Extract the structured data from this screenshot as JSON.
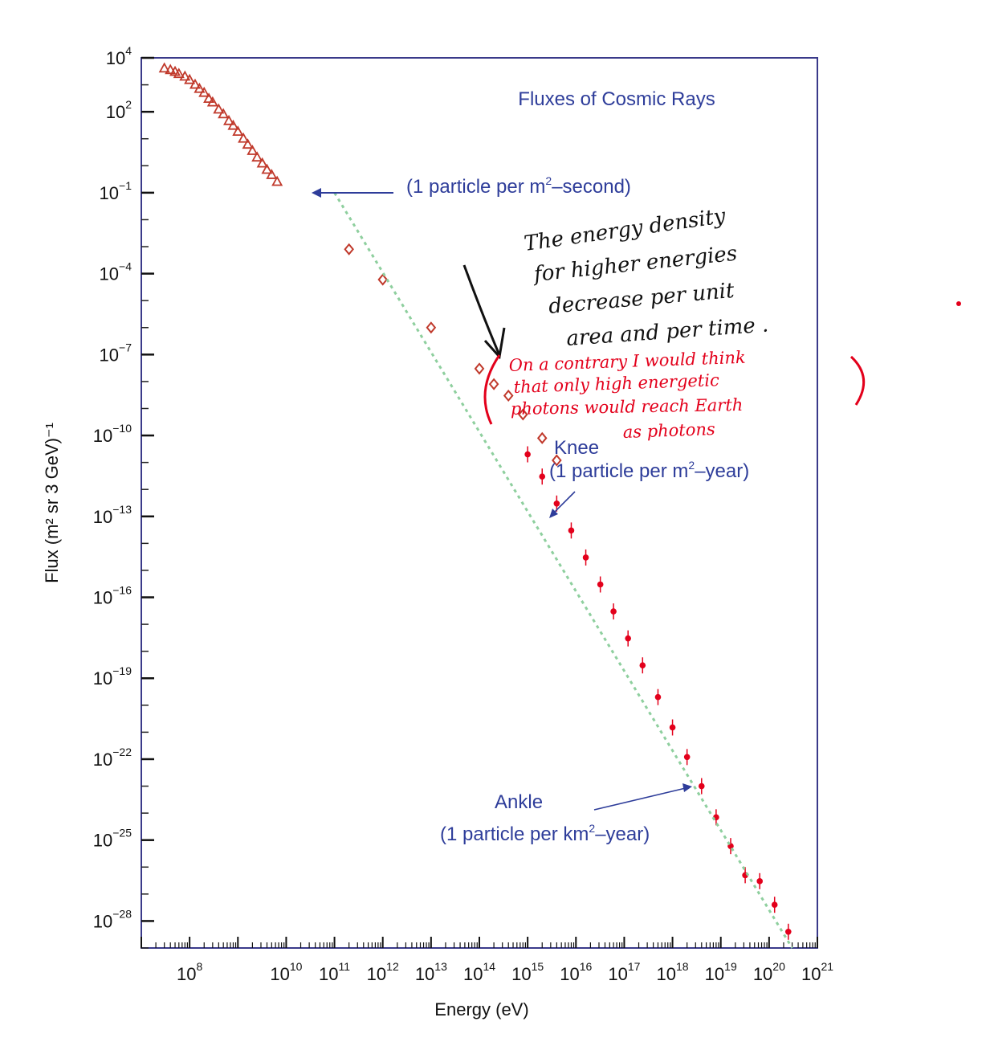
{
  "chart_data": {
    "type": "scatter",
    "title": "Fluxes of Cosmic Rays",
    "xlabel": "Energy (eV)",
    "ylabel": "Flux (m² sr 3 GeV)⁻¹",
    "x_scale": "log",
    "y_scale": "log",
    "xlim": [
      10000000.0,
      1e+21
    ],
    "ylim": [
      1e-29,
      10000.0
    ],
    "x_ticks": [
      {
        "exp": "8"
      },
      {
        "exp": "10"
      },
      {
        "exp": "11"
      },
      {
        "exp": "12"
      },
      {
        "exp": "13"
      },
      {
        "exp": "14"
      },
      {
        "exp": "15"
      },
      {
        "exp": "16"
      },
      {
        "exp": "17"
      },
      {
        "exp": "18"
      },
      {
        "exp": "19"
      },
      {
        "exp": "20"
      },
      {
        "exp": "21"
      }
    ],
    "y_ticks": [
      {
        "exp": "4"
      },
      {
        "exp": "2"
      },
      {
        "exp": "−1"
      },
      {
        "exp": "−4"
      },
      {
        "exp": "−7"
      },
      {
        "exp": "−10"
      },
      {
        "exp": "−13"
      },
      {
        "exp": "−16"
      },
      {
        "exp": "−19"
      },
      {
        "exp": "−22"
      },
      {
        "exp": "−25"
      },
      {
        "exp": "−28"
      }
    ],
    "tick_base": "10",
    "series": [
      {
        "marker": "open-triangle",
        "color": "#c0392b",
        "points": [
          [
            30000000.0,
            4000
          ],
          [
            40000000.0,
            3500
          ],
          [
            50000000.0,
            3000
          ],
          [
            60000000.0,
            2500
          ],
          [
            80000000.0,
            2000
          ],
          [
            100000000.0,
            1500
          ],
          [
            130000000.0,
            1000
          ],
          [
            160000000.0,
            700
          ],
          [
            200000000.0,
            500
          ],
          [
            250000000.0,
            300
          ],
          [
            300000000.0,
            220
          ],
          [
            400000000.0,
            120
          ],
          [
            500000000.0,
            80
          ],
          [
            650000000.0,
            45
          ],
          [
            800000000.0,
            30
          ],
          [
            1000000000.0,
            18
          ],
          [
            1300000000.0,
            10
          ],
          [
            1600000000.0,
            6
          ],
          [
            2000000000.0,
            3.5
          ],
          [
            2500000000.0,
            2
          ],
          [
            3200000000.0,
            1.2
          ],
          [
            4000000000.0,
            0.7
          ],
          [
            5000000000.0,
            0.45
          ],
          [
            6500000000.0,
            0.25
          ]
        ]
      },
      {
        "marker": "open-diamond",
        "color": "#c0392b",
        "points": [
          [
            200000000000.0,
            0.0008
          ],
          [
            1000000000000.0,
            6e-05
          ],
          [
            10000000000000.0,
            1e-06
          ],
          [
            100000000000000.0,
            3e-08
          ],
          [
            200000000000000.0,
            8e-09
          ],
          [
            400000000000000.0,
            3e-09
          ],
          [
            800000000000000.0,
            6e-10
          ],
          [
            2000000000000000.0,
            8e-11
          ],
          [
            4000000000000000.0,
            1.2e-11
          ]
        ]
      },
      {
        "marker": "filled-dot",
        "color": "#e3001b",
        "points": [
          [
            1000000000000000.0,
            2e-11
          ],
          [
            2000000000000000.0,
            3e-12
          ],
          [
            4000000000000000.0,
            3e-13
          ],
          [
            8000000000000000.0,
            3e-14
          ],
          [
            1.6e+16,
            3e-15
          ],
          [
            3.2e+16,
            3e-16
          ],
          [
            6e+16,
            3e-17
          ],
          [
            1.2e+17,
            3e-18
          ],
          [
            2.4e+17,
            3e-19
          ],
          [
            5e+17,
            2e-20
          ],
          [
            1e+18,
            1.5e-21
          ],
          [
            2e+18,
            1.2e-22
          ],
          [
            4e+18,
            1e-23
          ],
          [
            8e+18,
            7e-25
          ],
          [
            1.6e+19,
            6e-26
          ],
          [
            3.2e+19,
            5e-27
          ],
          [
            6.4e+19,
            3e-27
          ],
          [
            1.3e+20,
            4e-28
          ],
          [
            2.5e+20,
            4e-29
          ]
        ]
      },
      {
        "marker": "dashed-line",
        "color": "#8ecf9e",
        "points": [
          [
            100000000000.0,
            0.1
          ],
          [
            3e+20,
            1e-29
          ]
        ]
      }
    ],
    "annotations": {
      "second": {
        "text": "(1 particle per m",
        "sup": "2",
        "tail": "–second)",
        "x": 100000000000.0,
        "y": 0.1
      },
      "knee": {
        "label": "Knee",
        "text": "(1 particle per m",
        "sup": "2",
        "tail": "–year)",
        "x": 1e+16,
        "y": 1e-13
      },
      "ankle": {
        "label": "Ankle",
        "text": "(1 particle per km",
        "sup": "2",
        "tail": "–year)",
        "x": 1e+19,
        "y": 1e-23
      }
    },
    "grid": false,
    "legend": "none"
  },
  "handwriting": {
    "black_lines": [
      "The energy density",
      "for higher energies",
      "decrease per unit",
      "area and per time ."
    ],
    "red_lines": [
      "On a contrary I would think",
      "that only high energetic",
      "photons would reach Earth",
      "as photons"
    ]
  }
}
